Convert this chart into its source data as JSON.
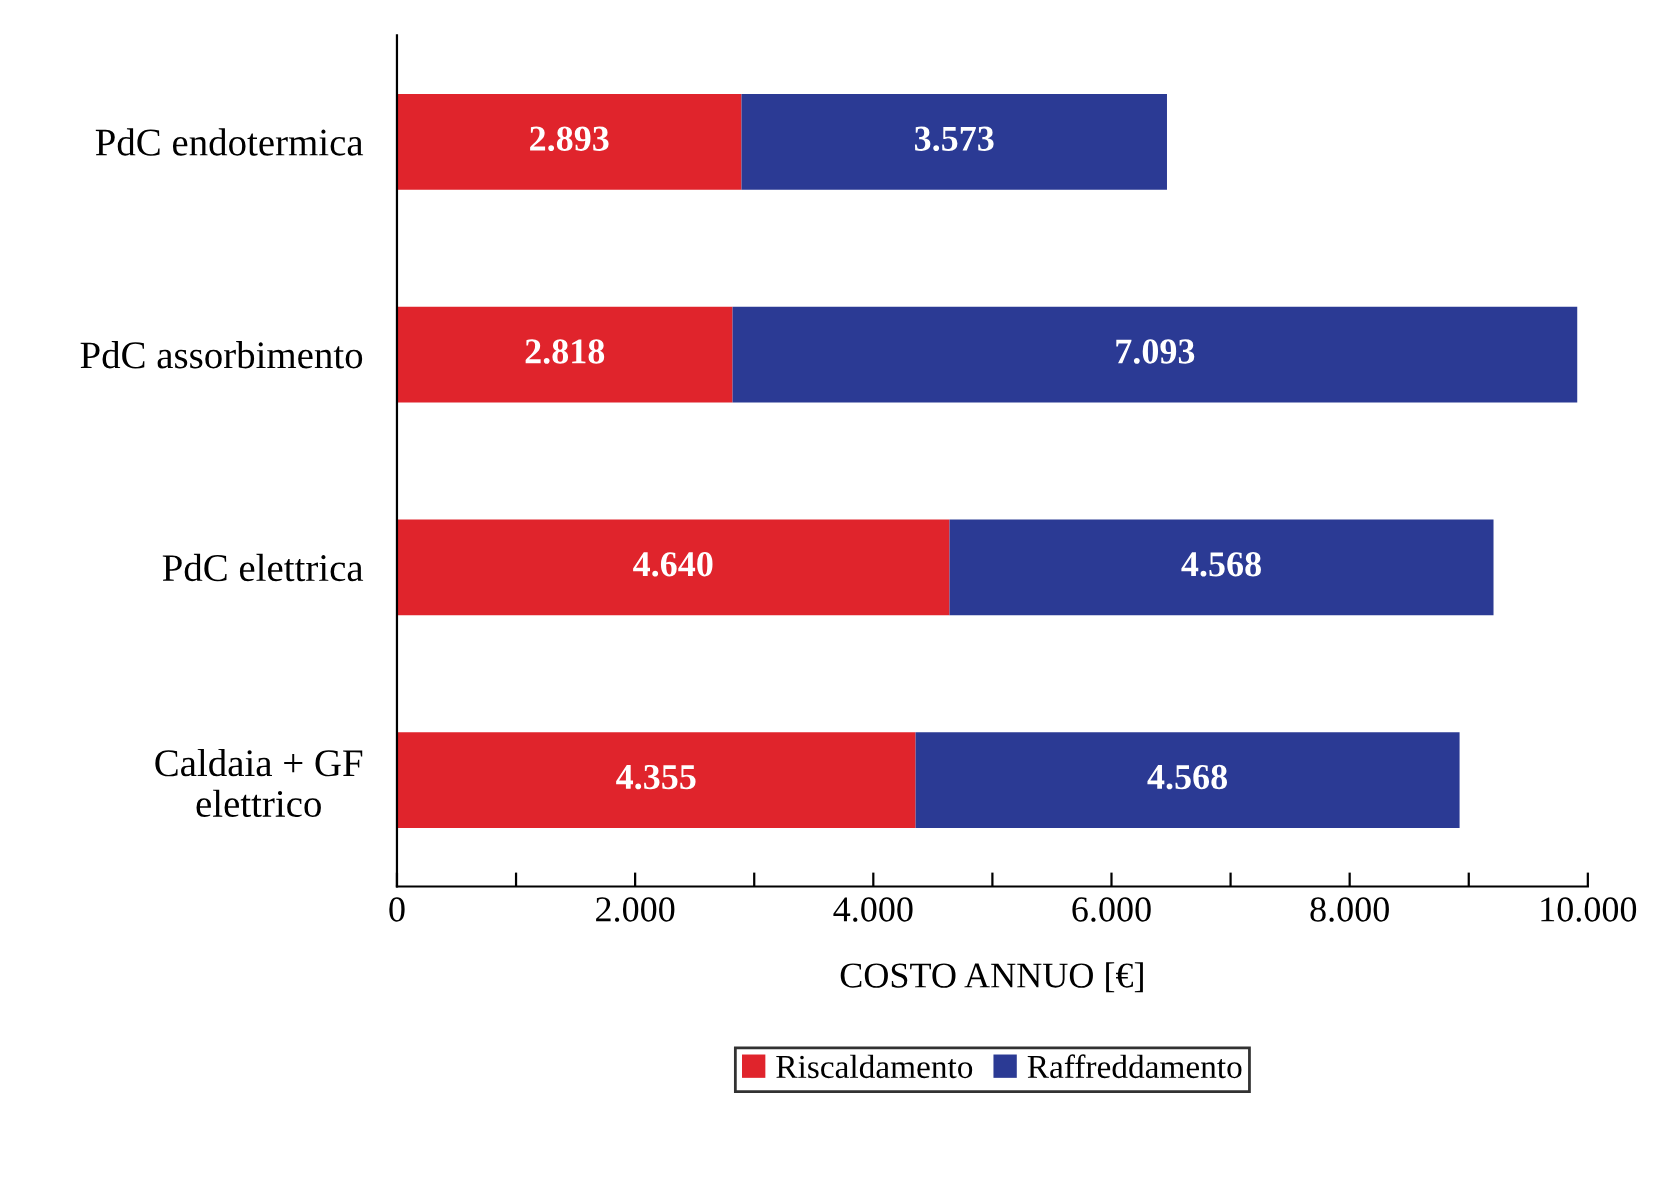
{
  "chart_data": {
    "type": "bar",
    "orientation": "horizontal",
    "stacked": true,
    "categories": [
      "PdC endotermica",
      "PdC assorbimento",
      "PdC elettrica",
      "Caldaia + GF\nelettrico"
    ],
    "series": [
      {
        "name": "Riscaldamento",
        "color": "#e0242c",
        "values": [
          2893,
          2818,
          4640,
          4355
        ],
        "value_labels": [
          "2.893",
          "2.818",
          "4.640",
          "4.355"
        ]
      },
      {
        "name": "Raffreddamento",
        "color": "#2b3a94",
        "values": [
          3573,
          7093,
          4568,
          4568
        ],
        "value_labels": [
          "3.573",
          "7.093",
          "4.568",
          "4.568"
        ]
      }
    ],
    "xlabel": "COSTO ANNUO [€]",
    "xlim": [
      0,
      10000
    ],
    "xticks": [
      0,
      {
        "value": 1000,
        "label": null
      },
      {
        "value": 2000,
        "label": "2.000"
      },
      {
        "value": 3000,
        "label": null
      },
      {
        "value": 4000,
        "label": "4.000"
      },
      {
        "value": 5000,
        "label": null
      },
      {
        "value": 6000,
        "label": "6.000"
      },
      {
        "value": 7000,
        "label": null
      },
      {
        "value": 8000,
        "label": "8.000"
      },
      {
        "value": 9000,
        "label": null
      },
      {
        "value": 10000,
        "label": "10.000"
      }
    ],
    "grid": false,
    "legend": "bottom"
  }
}
